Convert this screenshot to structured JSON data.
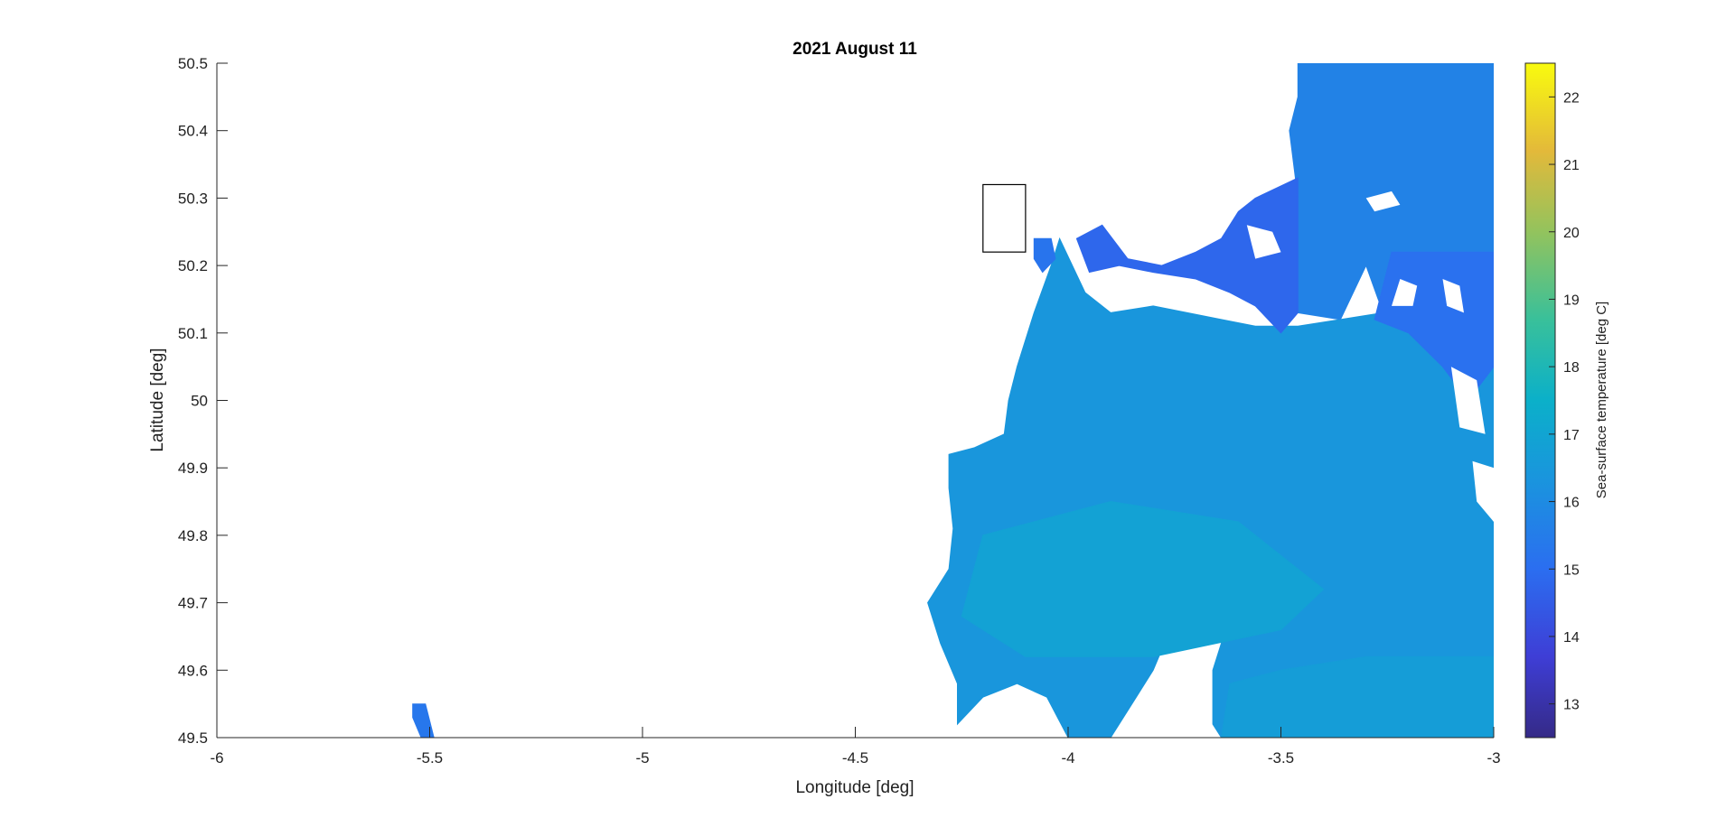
{
  "chart_data": {
    "type": "heatmap",
    "title": "2021 August 11",
    "xlabel": "Longitude [deg]",
    "ylabel": "Latitude [deg]",
    "xlim": [
      -6,
      -3
    ],
    "ylim": [
      49.5,
      50.5
    ],
    "xticks": [
      -6,
      -5.5,
      -5,
      -4.5,
      -4,
      -3.5,
      -3
    ],
    "xtick_labels": [
      "-6",
      "-5.5",
      "-5",
      "-4.5",
      "-4",
      "-3.5",
      "-3"
    ],
    "yticks": [
      49.5,
      49.6,
      49.7,
      49.8,
      49.9,
      50,
      50.1,
      50.2,
      50.3,
      50.4,
      50.5
    ],
    "ytick_labels": [
      "49.5",
      "49.6",
      "49.7",
      "49.8",
      "49.9",
      "50",
      "50.1",
      "50.2",
      "50.3",
      "50.4",
      "50.5"
    ],
    "colorbar": {
      "label": "Sea-surface temperature [deg C]",
      "clim": [
        12.5,
        22.5
      ],
      "ticks": [
        13,
        14,
        15,
        16,
        17,
        18,
        19,
        20,
        21,
        22
      ],
      "tick_labels": [
        "13",
        "14",
        "15",
        "16",
        "17",
        "18",
        "19",
        "20",
        "21",
        "22"
      ],
      "colormap": "parula"
    },
    "annotation_box": {
      "lon": [
        -4.2,
        -4.1
      ],
      "lat": [
        50.22,
        50.32
      ]
    },
    "regions": [
      {
        "name": "main-water-body",
        "temp": 16.4,
        "polygon": [
          [
            -4.02,
            50.24
          ],
          [
            -3.96,
            50.16
          ],
          [
            -3.9,
            50.13
          ],
          [
            -3.8,
            50.14
          ],
          [
            -3.72,
            50.13
          ],
          [
            -3.64,
            50.12
          ],
          [
            -3.56,
            50.11
          ],
          [
            -3.46,
            50.11
          ],
          [
            -3.36,
            50.12
          ],
          [
            -3.26,
            50.13
          ],
          [
            -3.12,
            50.13
          ],
          [
            -3.05,
            50.17
          ],
          [
            -3.0,
            50.22
          ],
          [
            -3.0,
            49.5
          ],
          [
            -3.64,
            49.5
          ],
          [
            -3.66,
            49.52
          ],
          [
            -3.66,
            49.6
          ],
          [
            -3.62,
            49.68
          ],
          [
            -3.7,
            49.69
          ],
          [
            -3.76,
            49.66
          ],
          [
            -3.8,
            49.6
          ],
          [
            -3.84,
            49.56
          ],
          [
            -3.9,
            49.5
          ],
          [
            -4.0,
            49.5
          ],
          [
            -4.05,
            49.56
          ],
          [
            -4.12,
            49.58
          ],
          [
            -4.2,
            49.56
          ],
          [
            -4.26,
            49.52
          ],
          [
            -4.26,
            49.58
          ],
          [
            -4.3,
            49.64
          ],
          [
            -4.33,
            49.7
          ],
          [
            -4.28,
            49.75
          ],
          [
            -4.27,
            49.81
          ],
          [
            -4.28,
            49.87
          ],
          [
            -4.28,
            49.92
          ],
          [
            -4.22,
            49.93
          ],
          [
            -4.15,
            49.95
          ],
          [
            -4.14,
            50.0
          ],
          [
            -4.12,
            50.05
          ],
          [
            -4.08,
            50.13
          ],
          [
            -4.04,
            50.2
          ]
        ]
      },
      {
        "name": "southern-extension",
        "temp": 16.7,
        "polygon": [
          [
            -3.64,
            49.5
          ],
          [
            -3.46,
            49.5
          ],
          [
            -3.3,
            49.5
          ],
          [
            -3.0,
            49.5
          ],
          [
            -3.0,
            49.62
          ],
          [
            -3.3,
            49.62
          ],
          [
            -3.5,
            49.6
          ],
          [
            -3.62,
            49.58
          ]
        ]
      },
      {
        "name": "central-warm-patch",
        "temp": 16.9,
        "polygon": [
          [
            -4.2,
            49.8
          ],
          [
            -3.9,
            49.85
          ],
          [
            -3.6,
            49.82
          ],
          [
            -3.4,
            49.72
          ],
          [
            -3.5,
            49.66
          ],
          [
            -3.8,
            49.62
          ],
          [
            -4.1,
            49.62
          ],
          [
            -4.25,
            49.68
          ]
        ]
      },
      {
        "name": "northern-strip",
        "temp": 15.7,
        "polygon": [
          [
            -3.46,
            50.5
          ],
          [
            -3.0,
            50.5
          ],
          [
            -3.0,
            50.14
          ],
          [
            -3.12,
            50.13
          ],
          [
            -3.26,
            50.13
          ],
          [
            -3.3,
            50.2
          ],
          [
            -3.36,
            50.12
          ],
          [
            -3.46,
            50.13
          ],
          [
            -3.46,
            50.3
          ],
          [
            -3.48,
            50.4
          ],
          [
            -3.46,
            50.45
          ]
        ]
      },
      {
        "name": "cold-band",
        "temp": 14.8,
        "polygon": [
          [
            -3.56,
            50.3
          ],
          [
            -3.46,
            50.33
          ],
          [
            -3.46,
            50.13
          ],
          [
            -3.5,
            50.1
          ],
          [
            -3.56,
            50.14
          ],
          [
            -3.62,
            50.16
          ],
          [
            -3.7,
            50.18
          ],
          [
            -3.8,
            50.19
          ],
          [
            -3.88,
            50.2
          ],
          [
            -3.95,
            50.19
          ],
          [
            -3.98,
            50.24
          ],
          [
            -3.92,
            50.26
          ],
          [
            -3.86,
            50.21
          ],
          [
            -3.78,
            50.2
          ],
          [
            -3.7,
            50.22
          ],
          [
            -3.64,
            50.24
          ],
          [
            -3.6,
            50.28
          ]
        ]
      },
      {
        "name": "eastern-cold-patch",
        "temp": 15.1,
        "polygon": [
          [
            -3.24,
            50.22
          ],
          [
            -3.0,
            50.22
          ],
          [
            -3.0,
            50.05
          ],
          [
            -3.06,
            50.0
          ],
          [
            -3.12,
            50.05
          ],
          [
            -3.2,
            50.1
          ],
          [
            -3.28,
            50.12
          ]
        ]
      },
      {
        "name": "islet-north",
        "temp": 15.2,
        "polygon": [
          [
            -4.08,
            50.24
          ],
          [
            -4.04,
            50.24
          ],
          [
            -4.03,
            50.21
          ],
          [
            -4.06,
            50.19
          ],
          [
            -4.08,
            50.21
          ]
        ]
      },
      {
        "name": "islet-west",
        "temp": 15.3,
        "polygon": [
          [
            -5.54,
            49.55
          ],
          [
            -5.51,
            49.55
          ],
          [
            -5.49,
            49.5
          ],
          [
            -5.52,
            49.5
          ],
          [
            -5.54,
            49.53
          ]
        ]
      }
    ],
    "gaps": [
      {
        "polygon": [
          [
            -3.3,
            50.3
          ],
          [
            -3.24,
            50.31
          ],
          [
            -3.22,
            50.29
          ],
          [
            -3.28,
            50.28
          ]
        ]
      },
      {
        "polygon": [
          [
            -3.58,
            50.26
          ],
          [
            -3.52,
            50.25
          ],
          [
            -3.5,
            50.22
          ],
          [
            -3.56,
            50.21
          ]
        ]
      },
      {
        "polygon": [
          [
            -3.22,
            50.18
          ],
          [
            -3.18,
            50.17
          ],
          [
            -3.19,
            50.14
          ],
          [
            -3.24,
            50.14
          ]
        ]
      },
      {
        "polygon": [
          [
            -3.12,
            50.18
          ],
          [
            -3.08,
            50.17
          ],
          [
            -3.07,
            50.13
          ],
          [
            -3.11,
            50.14
          ]
        ]
      },
      {
        "polygon": [
          [
            -3.1,
            50.05
          ],
          [
            -3.04,
            50.03
          ],
          [
            -3.02,
            49.95
          ],
          [
            -3.08,
            49.96
          ]
        ]
      },
      {
        "polygon": [
          [
            -3.05,
            49.91
          ],
          [
            -3.0,
            49.9
          ],
          [
            -3.0,
            49.82
          ],
          [
            -3.04,
            49.85
          ]
        ]
      }
    ]
  }
}
